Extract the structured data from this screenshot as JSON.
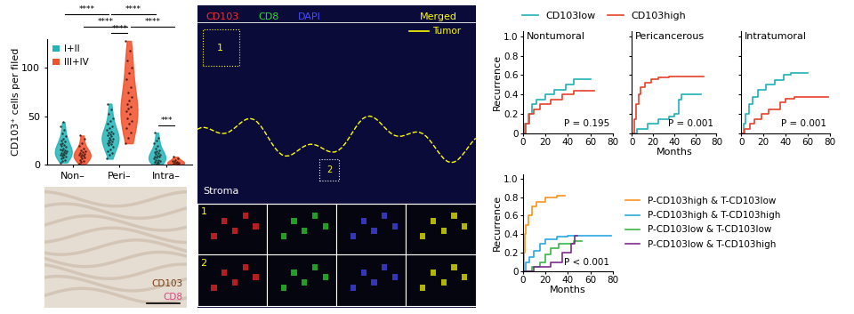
{
  "chart_data": [
    {
      "type": "violin",
      "ylabel": "CD103⁺ cells per filed",
      "categories": [
        "Non–",
        "Peri–",
        "Intra–"
      ],
      "series": [
        {
          "name": "I+II",
          "color": "#22b3b7",
          "values": [
            [
              2,
              4,
              5,
              6,
              7,
              8,
              9,
              10,
              10,
              11,
              12,
              12,
              13,
              14,
              15,
              15,
              16,
              17,
              18,
              19,
              20,
              21,
              22,
              24,
              25,
              27,
              29,
              32,
              36,
              40,
              44
            ],
            [
              6,
              10,
              12,
              14,
              16,
              18,
              20,
              21,
              22,
              23,
              24,
              25,
              26,
              27,
              28,
              29,
              30,
              31,
              32,
              33,
              34,
              36,
              38,
              40,
              42,
              45,
              48,
              52,
              57,
              63
            ],
            [
              0,
              1,
              2,
              3,
              3,
              4,
              5,
              5,
              6,
              7,
              8,
              8,
              9,
              10,
              11,
              12,
              13,
              14,
              15,
              17,
              19,
              22,
              25,
              28,
              33
            ]
          ]
        },
        {
          "name": "III+IV",
          "color": "#f0502a",
          "values": [
            [
              1,
              3,
              4,
              5,
              6,
              7,
              8,
              9,
              10,
              10,
              11,
              12,
              13,
              14,
              15,
              17,
              19,
              22,
              27,
              30
            ],
            [
              22,
              28,
              33,
              38,
              42,
              45,
              48,
              52,
              55,
              58,
              60,
              63,
              66,
              70,
              75,
              80,
              88,
              95,
              100,
              108,
              118,
              128
            ],
            [
              0,
              0,
              1,
              1,
              2,
              2,
              3,
              3,
              4,
              5,
              6,
              8
            ]
          ]
        }
      ],
      "ylim": [
        0,
        130
      ],
      "yticks": [
        0,
        50,
        100
      ],
      "legend": "upper left",
      "comparisons": [
        {
          "text": "****",
          "from": {
            "category": "Non–",
            "series": "I+II"
          },
          "to": {
            "category": "Peri–",
            "series": "I+II"
          }
        },
        {
          "text": "****",
          "from": {
            "category": "Peri–",
            "series": "I+II"
          },
          "to": {
            "category": "Intra–",
            "series": "I+II"
          }
        },
        {
          "text": "****",
          "from": {
            "category": "Non–",
            "series": "III+IV"
          },
          "to": {
            "category": "Peri–",
            "series": "III+IV"
          }
        },
        {
          "text": "****",
          "from": {
            "category": "Peri–",
            "series": "III+IV"
          },
          "to": {
            "category": "Intra–",
            "series": "III+IV"
          }
        },
        {
          "text": "****",
          "from": {
            "category": "Peri–",
            "series": "I+II"
          },
          "to": {
            "category": "Peri–",
            "series": "III+IV"
          }
        },
        {
          "text": "***",
          "from": {
            "category": "Intra–",
            "series": "I+II"
          },
          "to": {
            "category": "Intra–",
            "series": "III+IV"
          }
        }
      ]
    },
    {
      "type": "image",
      "labels": [
        {
          "text": "CD103",
          "color": "#7a3b12"
        },
        {
          "text": "CD8",
          "color": "#e0408a"
        }
      ]
    },
    {
      "type": "image",
      "channels": [
        {
          "text": "CD103",
          "color": "#ff2a2a"
        },
        {
          "text": "CD8",
          "color": "#2ee02e"
        },
        {
          "text": "DAPI",
          "color": "#4a4aff"
        },
        {
          "text": "Merged",
          "color": "#ffff00"
        }
      ],
      "legend_line": {
        "text": "Tumor",
        "color": "#ffff00"
      },
      "region_label": "Stroma",
      "insets": [
        "1",
        "2"
      ]
    },
    {
      "type": "line",
      "title": "Nontumoral",
      "annotation": "P = 0.195",
      "ylabel": "Recurrence",
      "line_style": "steps",
      "legend": "top",
      "xlim": [
        0,
        80
      ],
      "xticks": [
        0,
        20,
        40,
        60,
        80
      ],
      "ylim": [
        0,
        1.05
      ],
      "yticks": [
        0,
        0.2,
        0.4,
        0.6,
        0.8,
        1.0
      ],
      "series": [
        {
          "name": "CD103low",
          "color": "#20b2b8",
          "x": [
            0,
            2,
            5,
            8,
            12,
            20,
            28,
            38,
            45,
            60
          ],
          "values": [
            0,
            0.1,
            0.2,
            0.3,
            0.35,
            0.4,
            0.45,
            0.5,
            0.56,
            0.56
          ]
        },
        {
          "name": "CD103high",
          "color": "#e8402a",
          "x": [
            0,
            3,
            6,
            10,
            15,
            25,
            35,
            45,
            63
          ],
          "values": [
            0,
            0.1,
            0.2,
            0.25,
            0.3,
            0.35,
            0.4,
            0.44,
            0.44
          ]
        }
      ]
    },
    {
      "type": "line",
      "title": "Pericancerous",
      "annotation": "P = 0.001",
      "xlabel": "Months",
      "line_style": "steps",
      "tick_labels": "x",
      "xlim": [
        0,
        80
      ],
      "xticks": [
        0,
        20,
        40,
        60,
        80
      ],
      "ylim": [
        0,
        1.05
      ],
      "yticks": [
        0,
        0.2,
        0.4,
        0.6,
        0.8,
        1.0
      ],
      "series": [
        {
          "name": "CD103low",
          "color": "#20b2b8",
          "x": [
            0,
            5,
            15,
            25,
            35,
            40,
            44,
            47,
            65
          ],
          "values": [
            0,
            0.05,
            0.1,
            0.15,
            0.17,
            0.2,
            0.35,
            0.4,
            0.4
          ]
        },
        {
          "name": "CD103high",
          "color": "#e8402a",
          "x": [
            0,
            2,
            4,
            6,
            8,
            12,
            18,
            25,
            35,
            68
          ],
          "values": [
            0,
            0.15,
            0.3,
            0.4,
            0.48,
            0.52,
            0.56,
            0.58,
            0.59,
            0.59
          ]
        }
      ]
    },
    {
      "type": "line",
      "title": "Intratumoral",
      "annotation": "P = 0.001",
      "line_style": "steps",
      "tick_labels": "x",
      "xlim": [
        0,
        80
      ],
      "xticks": [
        0,
        20,
        40,
        60,
        80
      ],
      "ylim": [
        0,
        1.05
      ],
      "yticks": [
        0,
        0.2,
        0.4,
        0.6,
        0.8,
        1.0
      ],
      "series": [
        {
          "name": "CD103low",
          "color": "#20b2b8",
          "x": [
            0,
            2,
            4,
            7,
            10,
            15,
            22,
            30,
            38,
            45,
            60
          ],
          "values": [
            0,
            0.1,
            0.2,
            0.3,
            0.38,
            0.45,
            0.5,
            0.55,
            0.6,
            0.62,
            0.62
          ]
        },
        {
          "name": "CD103high",
          "color": "#e8402a",
          "x": [
            0,
            3,
            8,
            12,
            18,
            25,
            35,
            40,
            48,
            78
          ],
          "values": [
            0,
            0.05,
            0.1,
            0.15,
            0.2,
            0.25,
            0.32,
            0.36,
            0.38,
            0.38
          ]
        }
      ]
    },
    {
      "type": "line",
      "annotation": "P < 0.001",
      "xlabel": "Months",
      "ylabel": "Recurrence",
      "line_style": "steps",
      "legend": "right",
      "xlim": [
        0,
        80
      ],
      "xticks": [
        0,
        20,
        40,
        60,
        80
      ],
      "ylim": [
        0,
        1.05
      ],
      "yticks": [
        0,
        0.2,
        0.4,
        0.6,
        0.8,
        1.0
      ],
      "series": [
        {
          "name": "P-CD103high & T-CD103low",
          "color": "#f7941d",
          "x": [
            0,
            1,
            2,
            3,
            5,
            8,
            12,
            20,
            30,
            37
          ],
          "values": [
            0,
            0.2,
            0.4,
            0.5,
            0.6,
            0.7,
            0.75,
            0.8,
            0.82,
            0.82
          ]
        },
        {
          "name": "P-CD103high & T-CD103high",
          "color": "#29a9e0",
          "x": [
            0,
            3,
            6,
            10,
            15,
            20,
            30,
            40,
            78
          ],
          "values": [
            0,
            0.1,
            0.15,
            0.22,
            0.3,
            0.35,
            0.37,
            0.38,
            0.38
          ]
        },
        {
          "name": "P-CD103low & T-CD103low",
          "color": "#3cb44b",
          "x": [
            0,
            8,
            15,
            20,
            25,
            32,
            45,
            52
          ],
          "values": [
            0,
            0.05,
            0.1,
            0.18,
            0.25,
            0.3,
            0.33,
            0.33
          ]
        },
        {
          "name": "P-CD103low & T-CD103high",
          "color": "#7b2d8b",
          "x": [
            0,
            10,
            25,
            35,
            43,
            46,
            48
          ],
          "values": [
            0,
            0.05,
            0.1,
            0.2,
            0.3,
            0.38,
            0.38
          ]
        }
      ]
    }
  ]
}
